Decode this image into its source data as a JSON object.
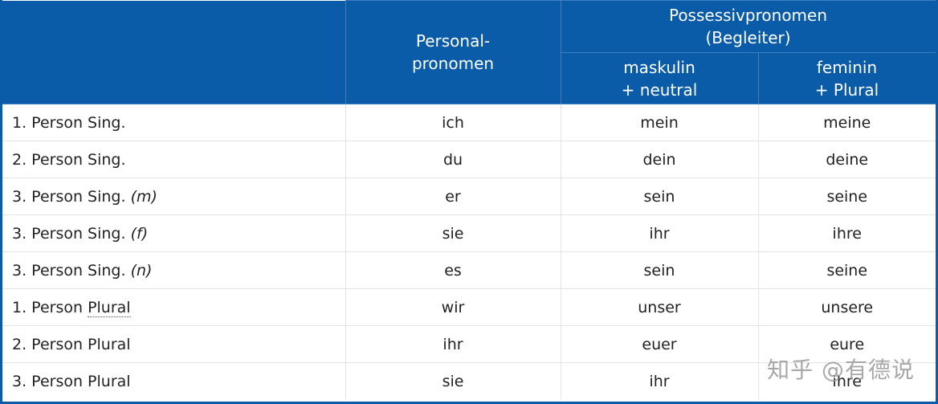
{
  "header": {
    "personal_line1": "Personal-",
    "personal_line2": "pronomen",
    "possessive_line1": "Possessivpronomen",
    "possessive_line2": "(Begleiter)",
    "mask_line1": "maskulin",
    "mask_line2": "+ neutral",
    "fem_line1": "feminin",
    "fem_line2": "+ Plural"
  },
  "rows": [
    {
      "label": "1. Person Sing.",
      "gender": "",
      "personal": "ich",
      "mask": "mein",
      "fem": "meine"
    },
    {
      "label": "2. Person Sing.",
      "gender": "",
      "personal": "du",
      "mask": "dein",
      "fem": "deine"
    },
    {
      "label": "3. Person Sing.",
      "gender": "(m)",
      "personal": "er",
      "mask": "sein",
      "fem": "seine"
    },
    {
      "label": "3. Person Sing.",
      "gender": "(f)",
      "personal": "sie",
      "mask": "ihr",
      "fem": "ihre"
    },
    {
      "label": "3. Person Sing.",
      "gender": "(n)",
      "personal": "es",
      "mask": "sein",
      "fem": "seine"
    },
    {
      "label": "1. Person",
      "plural": "Plural",
      "personal": "wir",
      "mask": "unser",
      "fem": "unsere"
    },
    {
      "label": "2. Person Plural",
      "gender": "",
      "personal": "ihr",
      "mask": "euer",
      "fem": "eure"
    },
    {
      "label": "3. Person Plural",
      "gender": "",
      "personal": "sie",
      "mask": "ihr",
      "fem": "ihre"
    }
  ],
  "watermark": "知乎 @有德说"
}
